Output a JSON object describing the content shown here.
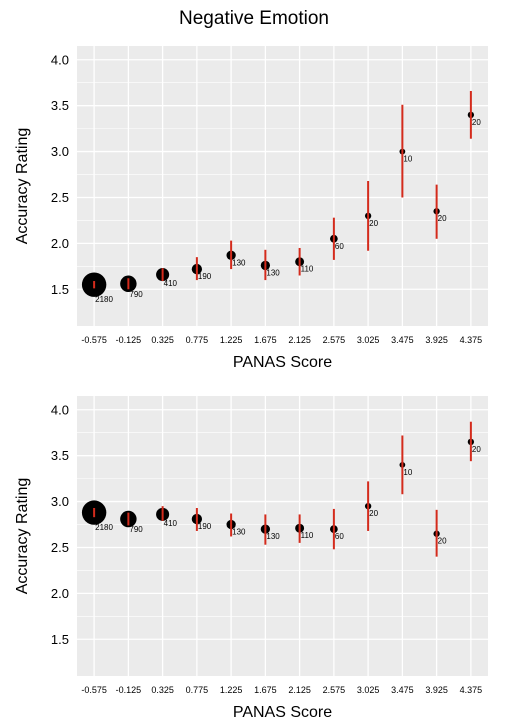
{
  "title": "Negative Emotion",
  "colors": {
    "panel": "#ebebeb",
    "grid": "#ffffff",
    "error_bar": "#d42b1c",
    "point": "#000000"
  },
  "chart_data": [
    {
      "type": "scatter",
      "title": "Negative Emotion",
      "xlabel": "PANAS Score",
      "ylabel": "Accuracy Rating",
      "x": [
        "-0.575",
        "-0.125",
        "0.325",
        "0.775",
        "1.225",
        "1.675",
        "2.125",
        "2.575",
        "3.025",
        "3.475",
        "3.925",
        "4.375"
      ],
      "y": [
        1.55,
        1.56,
        1.66,
        1.72,
        1.87,
        1.76,
        1.8,
        2.05,
        2.3,
        3.0,
        2.35,
        3.4
      ],
      "y_low": [
        1.51,
        1.5,
        1.59,
        1.6,
        1.72,
        1.6,
        1.65,
        1.82,
        1.92,
        2.5,
        2.05,
        3.14
      ],
      "y_high": [
        1.59,
        1.62,
        1.73,
        1.85,
        2.03,
        1.93,
        1.95,
        2.28,
        2.68,
        3.51,
        2.64,
        3.66
      ],
      "n": [
        "2180",
        "790",
        "410",
        "190",
        "130",
        "130",
        "110",
        "60",
        "20",
        "10",
        "20",
        "20"
      ],
      "n_values": [
        2180,
        790,
        410,
        190,
        130,
        130,
        110,
        60,
        20,
        10,
        20,
        20
      ],
      "ylim": [
        1.1,
        4.15
      ],
      "yticks": [
        "1.5",
        "2.0",
        "2.5",
        "3.0",
        "3.5",
        "4.0"
      ],
      "grid": true
    },
    {
      "type": "scatter",
      "xlabel": "PANAS Score",
      "ylabel": "Accuracy Rating",
      "x": [
        "-0.575",
        "-0.125",
        "0.325",
        "0.775",
        "1.225",
        "1.675",
        "2.125",
        "2.575",
        "3.025",
        "3.475",
        "3.925",
        "4.375"
      ],
      "y": [
        2.88,
        2.81,
        2.86,
        2.81,
        2.75,
        2.7,
        2.71,
        2.7,
        2.95,
        3.4,
        2.65,
        3.65
      ],
      "y_low": [
        2.83,
        2.74,
        2.79,
        2.68,
        2.62,
        2.53,
        2.55,
        2.48,
        2.68,
        3.08,
        2.4,
        3.44
      ],
      "y_high": [
        2.93,
        2.88,
        2.95,
        2.93,
        2.87,
        2.86,
        2.86,
        2.92,
        3.22,
        3.72,
        2.91,
        3.87
      ],
      "n": [
        "2180",
        "790",
        "410",
        "190",
        "130",
        "130",
        "110",
        "60",
        "20",
        "10",
        "20",
        "20"
      ],
      "n_values": [
        2180,
        790,
        410,
        190,
        130,
        130,
        110,
        60,
        20,
        10,
        20,
        20
      ],
      "ylim": [
        1.1,
        4.15
      ],
      "yticks": [
        "1.5",
        "2.0",
        "2.5",
        "3.0",
        "3.5",
        "4.0"
      ],
      "grid": true
    }
  ]
}
